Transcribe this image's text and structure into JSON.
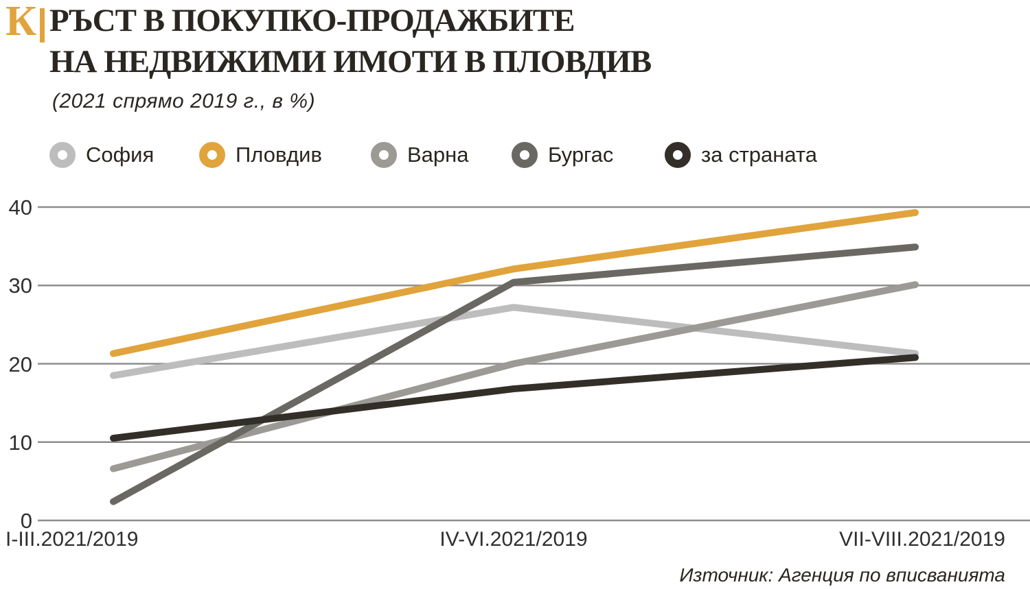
{
  "header": {
    "logo_letter": "К",
    "title_line1": "РЪСТ В ПОКУПКО-ПРОДАЖБИТЕ",
    "title_line2": "НА НЕДВИЖИМИ ИМОТИ В ПЛОВДИВ",
    "subtitle": "(2021 спрямо 2019 г., в %)"
  },
  "source": "Източник: Агенция по вписванията",
  "colors": {
    "accent_orange": "#E1A33B",
    "title_text": "#262220",
    "grid_line": "#8D8D8D",
    "axis_text": "#2F2F2F"
  },
  "chart_data": {
    "type": "line",
    "title": "РЪСТ В ПОКУПКО-ПРОДАЖБИТЕ НА НЕДВИЖИМИ ИМОТИ В ПЛОВДИВ",
    "subtitle": "(2021 спрямо 2019 г., в %)",
    "x": [
      "I-III.2021/2019",
      "IV-VI.2021/2019",
      "VII-VIII.2021/2019"
    ],
    "xlabel": "",
    "ylabel": "",
    "ylim": [
      0,
      40
    ],
    "yticks": [
      0,
      10,
      20,
      30,
      40
    ],
    "grid": "horizontal",
    "legend_position": "top",
    "series": [
      {
        "name": "София",
        "color": "#BDBDBD",
        "values": [
          18.5,
          27.2,
          21.3
        ]
      },
      {
        "name": "Пловдив",
        "color": "#E1A33B",
        "values": [
          21.3,
          32.1,
          39.3
        ]
      },
      {
        "name": "Варна",
        "color": "#9B9A95",
        "values": [
          6.6,
          20.0,
          30.1
        ]
      },
      {
        "name": "Бургас",
        "color": "#6A6862",
        "values": [
          2.4,
          30.4,
          34.9
        ]
      },
      {
        "name": "за страната",
        "color": "#332E28",
        "values": [
          10.5,
          16.8,
          20.8
        ]
      }
    ]
  }
}
